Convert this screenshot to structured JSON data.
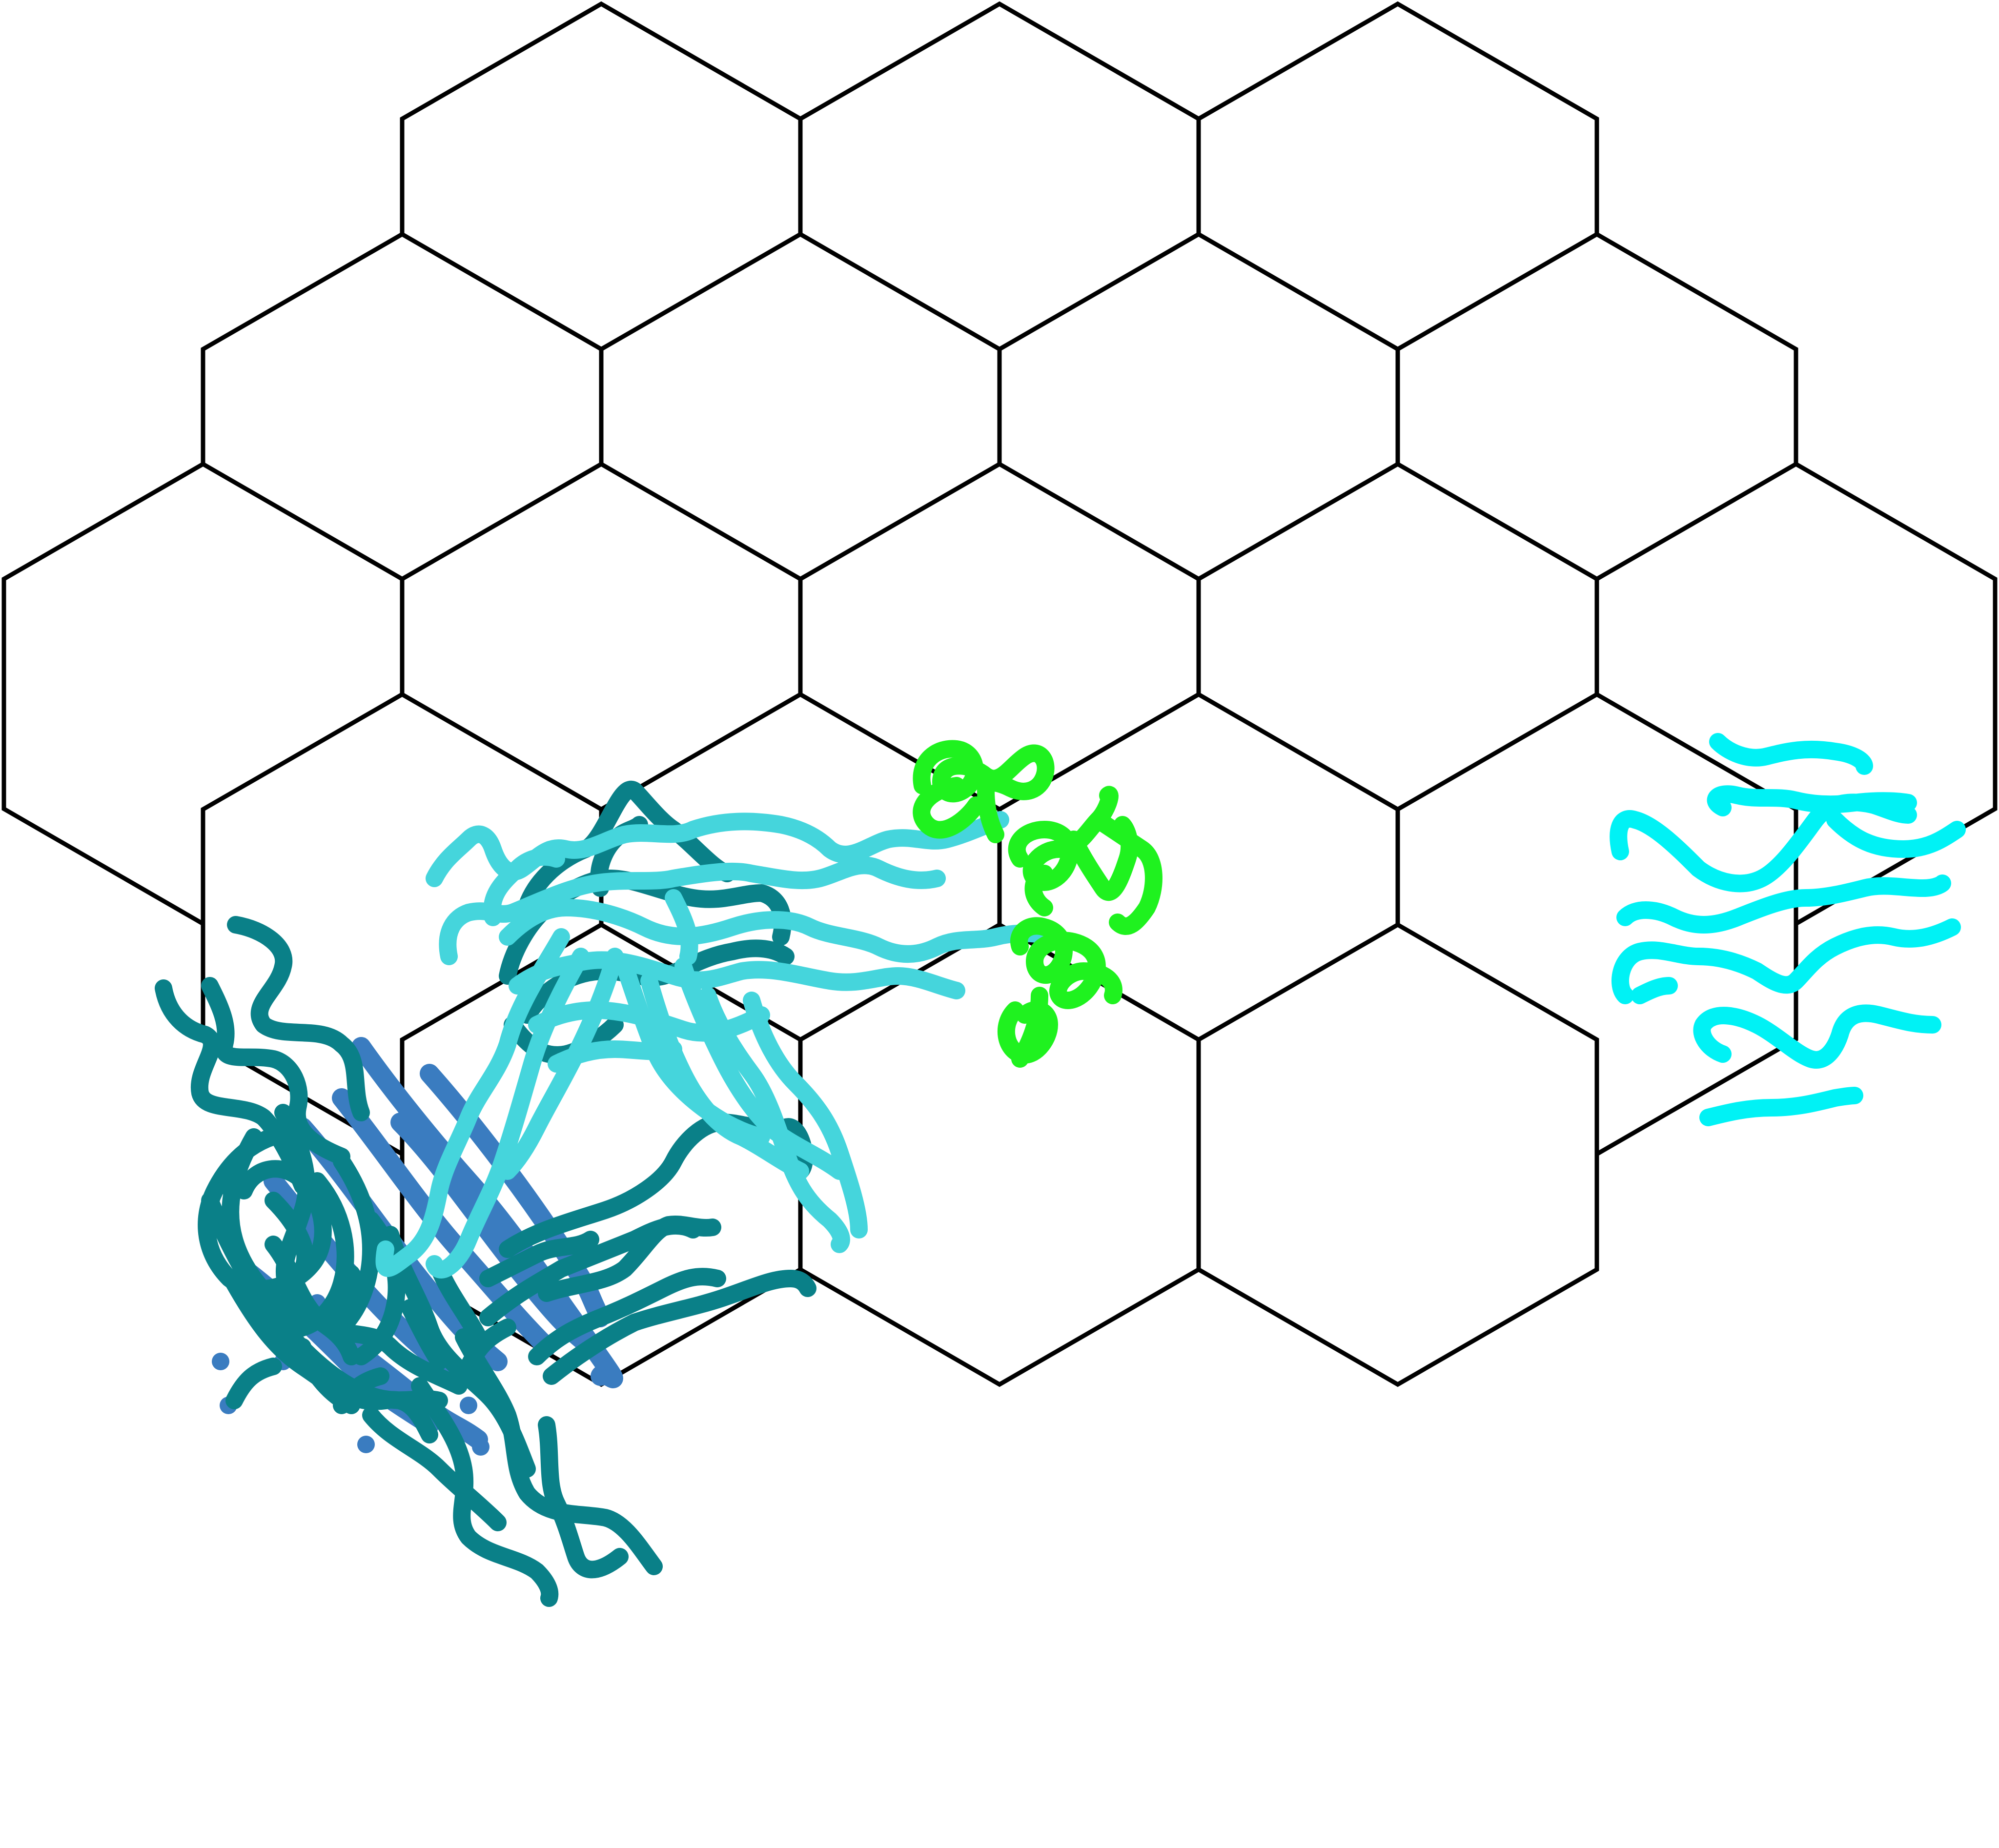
{
  "board": {
    "name": "hex-board",
    "rows": [
      3,
      4,
      5,
      4,
      3
    ],
    "background": "#ffffff",
    "grid_line_color": "#000000"
  },
  "drawings": [
    {
      "name": "dark-teal-scribbles",
      "color": "#0a8088",
      "region": "lower-left"
    },
    {
      "name": "blue-scribbles",
      "color": "#3a7cc0",
      "region": "lower-left"
    },
    {
      "name": "light-cyan-scribbles",
      "color": "#45d5dc",
      "region": "center-left"
    },
    {
      "name": "green-loops",
      "color": "#1ff21f",
      "region": "center"
    },
    {
      "name": "aqua-waves",
      "color": "#00f2f5",
      "region": "right"
    }
  ]
}
